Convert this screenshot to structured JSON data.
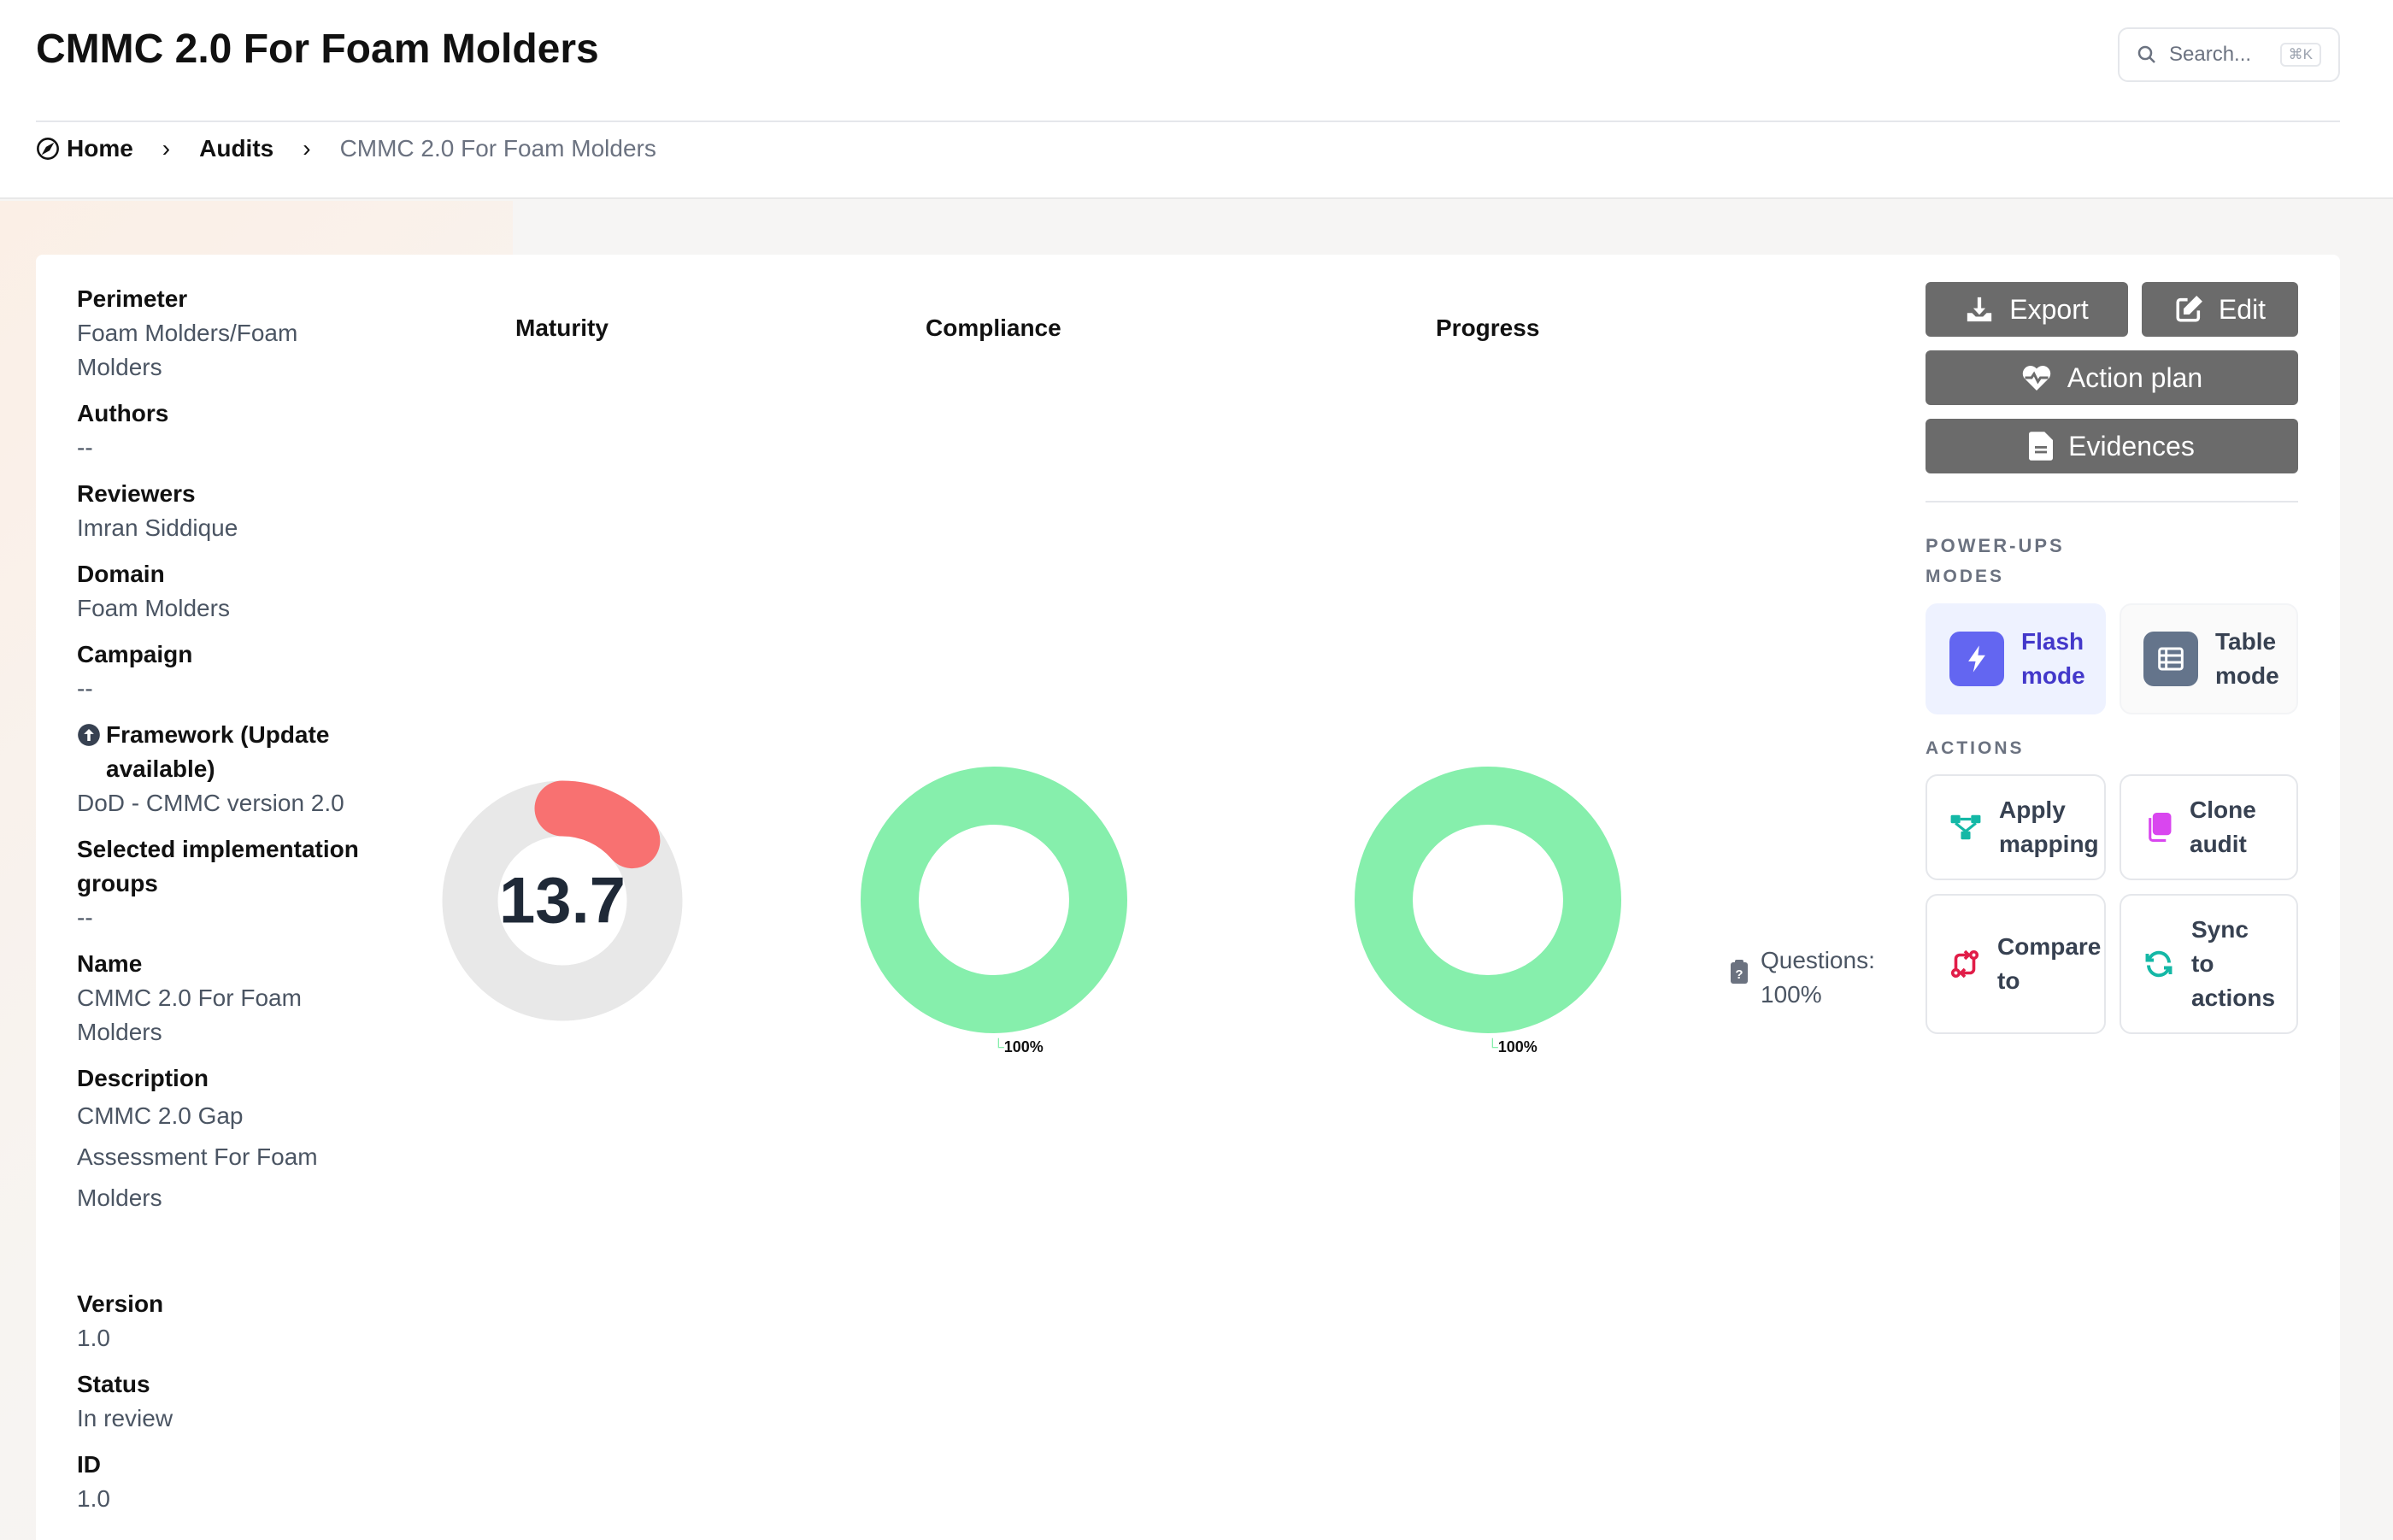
{
  "header": {
    "title": "CMMC 2.0 For Foam Molders",
    "search_placeholder": "Search...",
    "search_shortcut": "⌘K"
  },
  "breadcrumb": {
    "home": "Home",
    "audits": "Audits",
    "current": "CMMC 2.0 For Foam Molders",
    "separator": "›"
  },
  "meta": {
    "perimeter_label": "Perimeter",
    "perimeter_line1": "Foam Molders/Foam",
    "perimeter_line2": "Molders",
    "authors_label": "Authors",
    "authors_value": "--",
    "reviewers_label": "Reviewers",
    "reviewers_value": "Imran Siddique",
    "domain_label": "Domain",
    "domain_value": "Foam Molders",
    "campaign_label": "Campaign",
    "campaign_value": "--",
    "framework_label_line1": "Framework (Update",
    "framework_label_line2": "available)",
    "framework_value": "DoD - CMMC version 2.0",
    "groups_label_line1": "Selected implementation",
    "groups_label_line2": "groups",
    "groups_value": "--",
    "name_label": "Name",
    "name_line1": "CMMC 2.0 For Foam",
    "name_line2": "Molders",
    "description_label": "Description",
    "description_line1": "CMMC 2.0 Gap",
    "description_line2": "Assessment For Foam",
    "description_line3": "Molders",
    "version_label": "Version",
    "version_value": "1.0",
    "status_label": "Status",
    "status_value": "In review",
    "id_label": "ID",
    "id_value": "1.0"
  },
  "chart_data": [
    {
      "type": "gauge",
      "title": "Maturity",
      "value": 13.7,
      "value_label": "13.7",
      "max": 100,
      "colors": {
        "value": "#f87171",
        "track": "#e8e8e8"
      }
    },
    {
      "type": "pie",
      "title": "Compliance",
      "slices": [
        {
          "value": 100,
          "label": "100%",
          "color": "#86efac"
        }
      ]
    },
    {
      "type": "pie",
      "title": "Progress",
      "slices": [
        {
          "value": 100,
          "label": "100%",
          "color": "#86efac"
        }
      ]
    }
  ],
  "questions": {
    "label": "Questions:",
    "value": "100%"
  },
  "toolbar": {
    "export_label": "Export",
    "edit_label": "Edit",
    "action_plan_label": "Action plan",
    "evidences_label": "Evidences"
  },
  "powerups": {
    "section_label": "POWER-UPS",
    "modes_label": "MODES",
    "flash_line1": "Flash",
    "flash_line2": "mode",
    "table_line1": "Table",
    "table_line2": "mode",
    "actions_label": "ACTIONS",
    "apply_line1": "Apply",
    "apply_line2": "mapping",
    "clone_line1": "Clone",
    "clone_line2": "audit",
    "compare_line1": "Compare",
    "compare_line2": "to",
    "sync_line1": "Sync",
    "sync_line2": "to",
    "sync_line3": "actions"
  },
  "colors": {
    "accent": "#6366f1",
    "button_bg": "#6b6b6b",
    "success": "#86efac",
    "danger": "#f87171"
  }
}
